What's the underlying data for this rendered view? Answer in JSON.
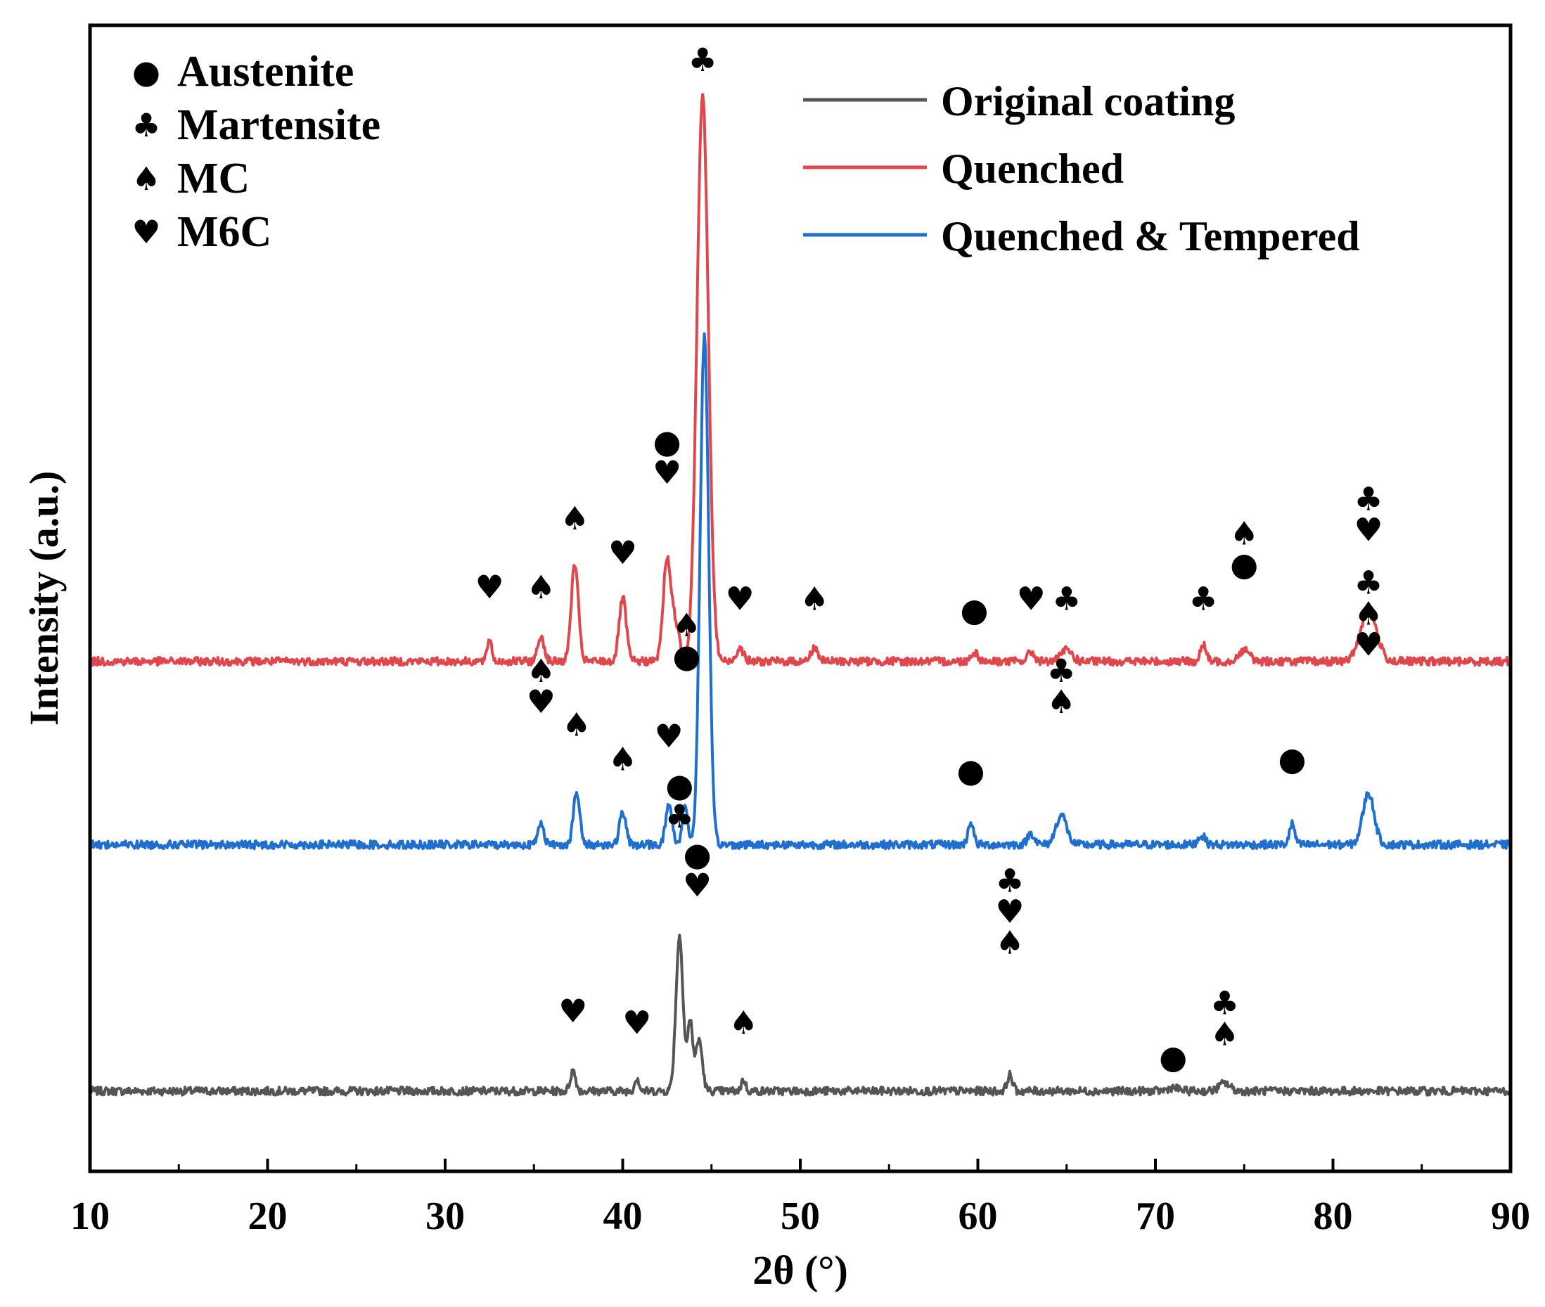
{
  "chart_data": {
    "type": "line",
    "title": "",
    "xlabel": "2θ (°)",
    "ylabel": "Intensity (a.u.)",
    "xlim": [
      10,
      90
    ],
    "xticks": [
      10,
      20,
      30,
      40,
      50,
      60,
      70,
      80,
      90
    ],
    "xtick_labels": [
      "10",
      "20",
      "30",
      "40",
      "50",
      "60",
      "70",
      "80",
      "90"
    ],
    "ylim": [
      0,
      1
    ],
    "yticks": [],
    "legend": {
      "position": "top-right"
    },
    "phase_legend": {
      "position": "top-left",
      "items": [
        {
          "symbol": "●",
          "label": "Austenite"
        },
        {
          "symbol": "♣",
          "label": "Martensite"
        },
        {
          "symbol": "♠",
          "label": "MC"
        },
        {
          "symbol": "♥",
          "label": "M6C"
        }
      ]
    },
    "series": [
      {
        "name": "Original coating",
        "color": "#555555",
        "baseline": 0.07,
        "peaks": [
          [
            37.2,
            0.018,
            0.15
          ],
          [
            40.8,
            0.012,
            0.12
          ],
          [
            43.2,
            0.135,
            0.2
          ],
          [
            43.8,
            0.06,
            0.15
          ],
          [
            44.3,
            0.045,
            0.18
          ],
          [
            46.8,
            0.01,
            0.12
          ],
          [
            61.8,
            0.014,
            0.15
          ],
          [
            71.0,
            0.003,
            0.3
          ],
          [
            73.9,
            0.007,
            0.3
          ]
        ],
        "annotations": [
          {
            "x": 37.2,
            "y": 0.13,
            "symbols": [
              "♥"
            ]
          },
          {
            "x": 40.8,
            "y": 0.12,
            "symbols": [
              "♥"
            ]
          },
          {
            "x": 43.2,
            "y": 0.3,
            "symbols": [
              "●",
              "♣"
            ]
          },
          {
            "x": 44.2,
            "y": 0.24,
            "symbols": [
              "●",
              "♥"
            ]
          },
          {
            "x": 46.8,
            "y": 0.12,
            "symbols": [
              "♠"
            ]
          },
          {
            "x": 61.8,
            "y": 0.19,
            "symbols": [
              "♣",
              "♥",
              "♠"
            ]
          },
          {
            "x": 71.0,
            "y": 0.09,
            "symbols": [
              "●"
            ]
          },
          {
            "x": 73.9,
            "y": 0.11,
            "symbols": [
              "♣",
              "♠"
            ]
          }
        ]
      },
      {
        "name": "Quenched",
        "color": "#e0474c",
        "baseline": 0.445,
        "peaks": [
          [
            32.5,
            0.02,
            0.12
          ],
          [
            35.4,
            0.022,
            0.18
          ],
          [
            37.3,
            0.085,
            0.2
          ],
          [
            40.0,
            0.055,
            0.2
          ],
          [
            42.5,
            0.09,
            0.22
          ],
          [
            43.0,
            0.03,
            0.2
          ],
          [
            44.5,
            0.495,
            0.32
          ],
          [
            46.6,
            0.012,
            0.2
          ],
          [
            50.8,
            0.012,
            0.2
          ],
          [
            59.8,
            0.008,
            0.2
          ],
          [
            63.0,
            0.008,
            0.2
          ],
          [
            65.0,
            0.01,
            0.3
          ],
          [
            72.7,
            0.015,
            0.15
          ],
          [
            75.0,
            0.01,
            0.3
          ],
          [
            82.0,
            0.045,
            0.45
          ]
        ],
        "annotations": [
          {
            "x": 32.5,
            "y": 0.5,
            "symbols": [
              "♥"
            ]
          },
          {
            "x": 35.4,
            "y": 0.5,
            "symbols": [
              "♠"
            ]
          },
          {
            "x": 37.3,
            "y": 0.56,
            "symbols": [
              "♠"
            ]
          },
          {
            "x": 40.0,
            "y": 0.53,
            "symbols": [
              "♥"
            ]
          },
          {
            "x": 42.5,
            "y": 0.6,
            "symbols": [
              "●",
              "♥"
            ]
          },
          {
            "x": 44.5,
            "y": 0.96,
            "symbols": [
              "♣"
            ]
          },
          {
            "x": 46.6,
            "y": 0.49,
            "symbols": [
              "♥"
            ]
          },
          {
            "x": 50.8,
            "y": 0.49,
            "symbols": [
              "♠"
            ]
          },
          {
            "x": 59.8,
            "y": 0.48,
            "symbols": [
              "●"
            ]
          },
          {
            "x": 63.0,
            "y": 0.49,
            "symbols": [
              "♥"
            ]
          },
          {
            "x": 65.0,
            "y": 0.49,
            "symbols": [
              "♣"
            ]
          },
          {
            "x": 72.7,
            "y": 0.49,
            "symbols": [
              "♣"
            ]
          },
          {
            "x": 75.0,
            "y": 0.52,
            "symbols": [
              "♠",
              "●"
            ]
          },
          {
            "x": 82.0,
            "y": 0.55,
            "symbols": [
              "♣",
              "♥"
            ]
          }
        ]
      },
      {
        "name": "Quenched & Tempered",
        "color": "#1f6fd1",
        "baseline": 0.285,
        "peaks": [
          [
            35.4,
            0.02,
            0.16
          ],
          [
            37.4,
            0.045,
            0.18
          ],
          [
            40.0,
            0.028,
            0.18
          ],
          [
            42.6,
            0.035,
            0.18
          ],
          [
            43.5,
            0.035,
            0.15
          ],
          [
            44.6,
            0.445,
            0.24
          ],
          [
            59.6,
            0.02,
            0.15
          ],
          [
            63.0,
            0.01,
            0.2
          ],
          [
            64.7,
            0.026,
            0.3
          ],
          [
            72.6,
            0.008,
            0.2
          ],
          [
            77.7,
            0.018,
            0.15
          ],
          [
            82.0,
            0.045,
            0.32
          ]
        ],
        "annotations": [
          {
            "x": 35.4,
            "y": 0.4,
            "symbols": [
              "♠",
              "♥"
            ]
          },
          {
            "x": 37.4,
            "y": 0.38,
            "symbols": [
              "♠"
            ]
          },
          {
            "x": 40.0,
            "y": 0.35,
            "symbols": [
              "♠"
            ]
          },
          {
            "x": 42.6,
            "y": 0.37,
            "symbols": [
              "♥"
            ]
          },
          {
            "x": 43.6,
            "y": 0.44,
            "symbols": [
              "♠",
              "●"
            ]
          },
          {
            "x": 59.6,
            "y": 0.34,
            "symbols": [
              "●"
            ]
          },
          {
            "x": 64.7,
            "y": 0.4,
            "symbols": [
              "♣",
              "♠"
            ]
          },
          {
            "x": 77.7,
            "y": 0.35,
            "symbols": [
              "●"
            ]
          },
          {
            "x": 82.0,
            "y": 0.45,
            "symbols": [
              "♣",
              "♠",
              "♥"
            ]
          }
        ]
      }
    ]
  }
}
